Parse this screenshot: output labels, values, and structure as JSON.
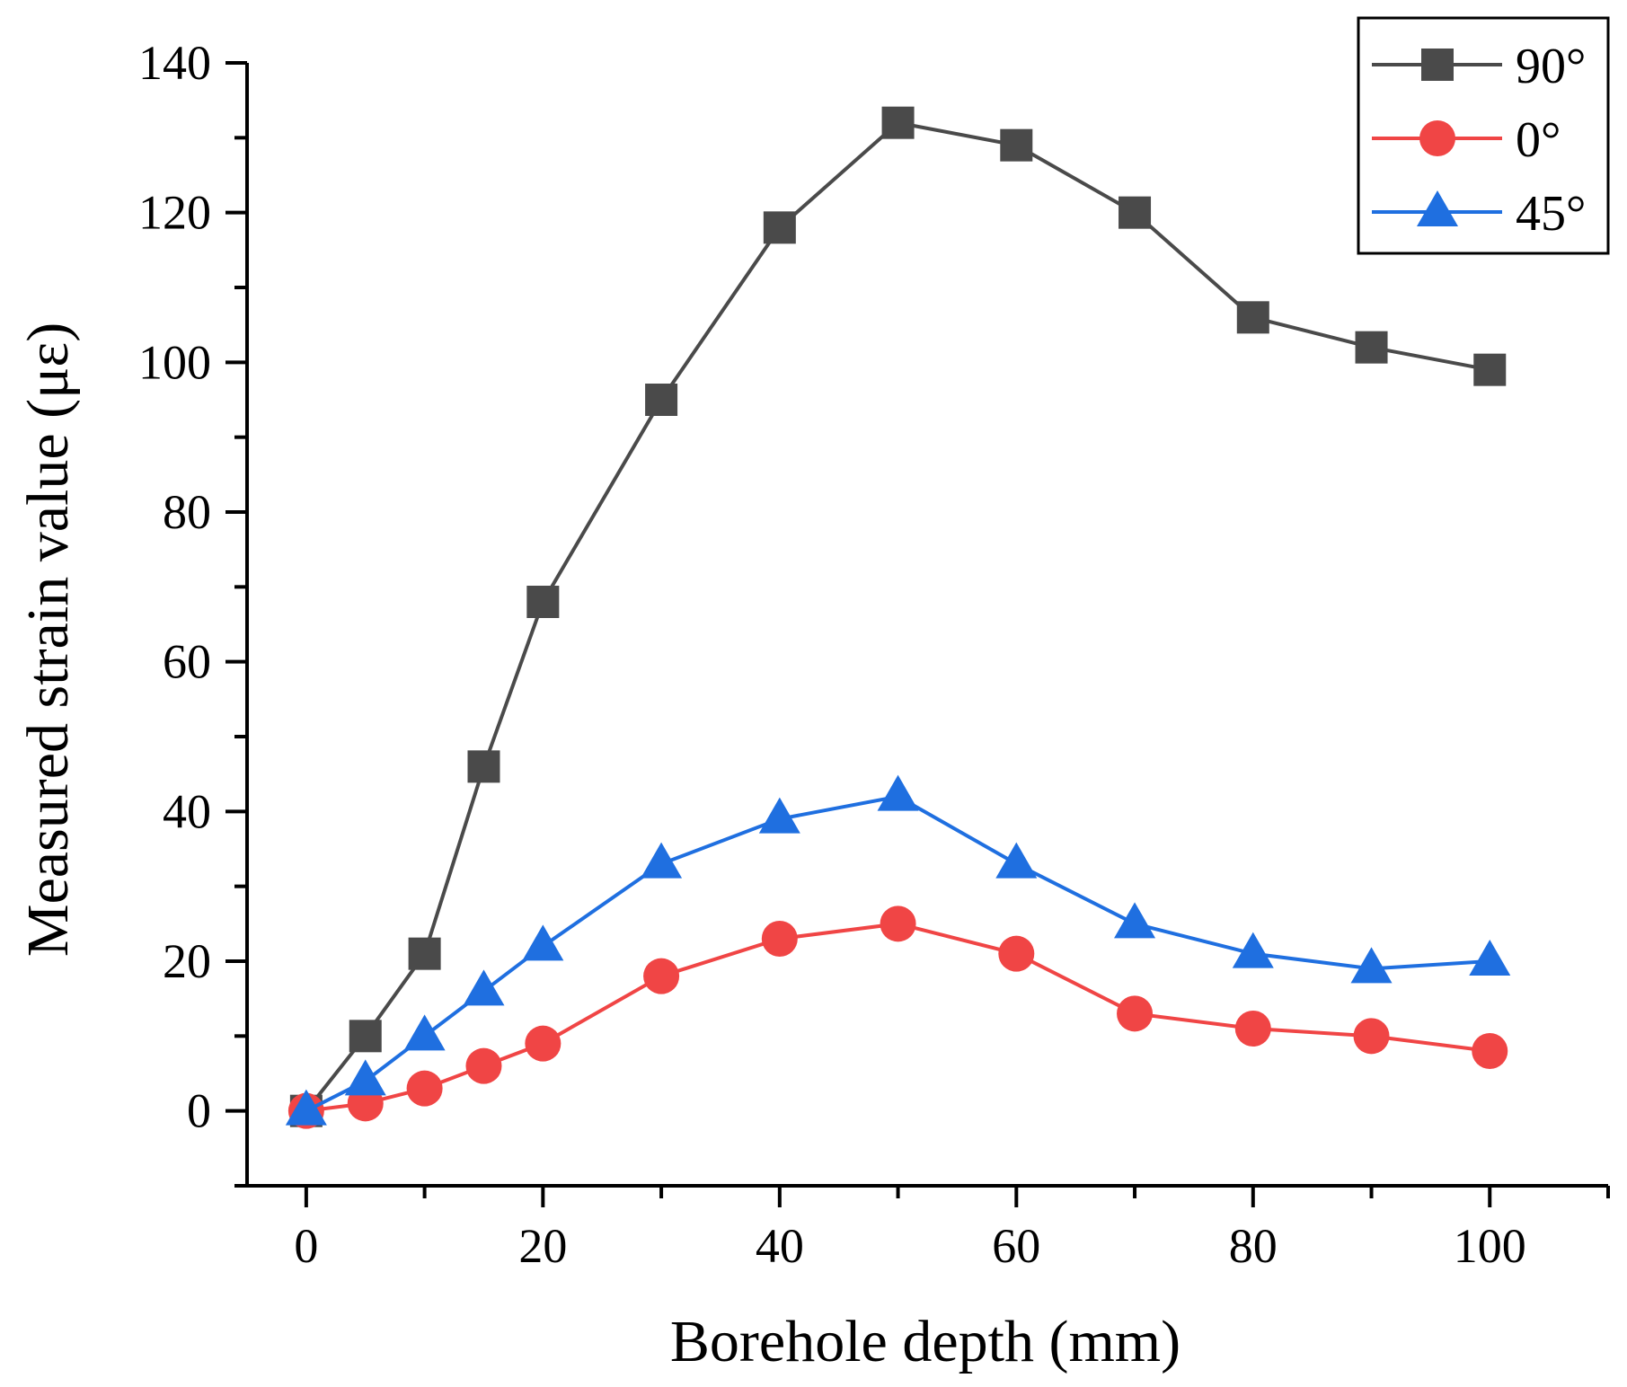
{
  "chart_data": {
    "type": "line",
    "title": "",
    "xlabel": "Borehole depth (mm)",
    "ylabel": "Measured strain value (με)",
    "xlim": [
      -5,
      110
    ],
    "ylim": [
      -10,
      140
    ],
    "x_ticks": [
      0,
      20,
      40,
      60,
      80,
      100
    ],
    "y_ticks": [
      0,
      20,
      40,
      60,
      80,
      100,
      120,
      140
    ],
    "x_minor_step": 10,
    "y_minor_step": 10,
    "grid": false,
    "legend_position": "top-right",
    "x": [
      0,
      5,
      10,
      15,
      20,
      30,
      40,
      50,
      60,
      70,
      80,
      90,
      100
    ],
    "series": [
      {
        "name": "90°",
        "marker": "square",
        "color": "#4a4a4a",
        "values": [
          0,
          10,
          21,
          46,
          68,
          95,
          118,
          132,
          129,
          120,
          106,
          102,
          99
        ]
      },
      {
        "name": "0°",
        "marker": "circle",
        "color": "#f04545",
        "values": [
          0,
          1,
          3,
          6,
          9,
          18,
          23,
          25,
          21,
          13,
          11,
          10,
          8
        ]
      },
      {
        "name": "45°",
        "marker": "triangle",
        "color": "#1f6fe0",
        "values": [
          0,
          4,
          10,
          16,
          22,
          33,
          39,
          42,
          33,
          25,
          21,
          19,
          20
        ]
      }
    ]
  }
}
